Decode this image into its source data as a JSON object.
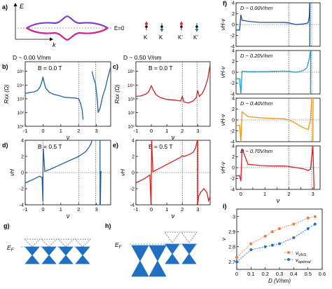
{
  "panel_labels": {
    "a": "a)",
    "b": "b)",
    "c": "c)",
    "d": "d)",
    "e": "e)",
    "f": "f)",
    "g": "g)",
    "h": "h)",
    "i": "i)"
  },
  "schematic_a": {
    "energy_label": "E",
    "k_label": "k",
    "fermi_label": "E=0",
    "valleys": [
      "K",
      "K",
      "K'",
      "K'"
    ],
    "colors": {
      "purple": "#7a3fd1",
      "magenta": "#d0208a",
      "red_arrow": "#d62728",
      "blue_arrow": "#1f77b4"
    }
  },
  "panel_b_header": "D ~ 0.00 V/nm",
  "panel_c_header": "D ~ 0.50 V/nm",
  "colors": {
    "blue": "#1f5fa8",
    "red": "#d62020",
    "dark_blue": "#1b4f91",
    "light_blue": "#1f9bd3",
    "orange": "#f0960f",
    "red_f": "#d62020",
    "cone_blue": "#1f6fc2",
    "orange_i": "#f07a3a",
    "blue_i": "#1f6fc2"
  },
  "chart_data": [
    {
      "panel": "b",
      "type": "line",
      "title": "B = 0.0 T",
      "xlabel": "ν",
      "ylabel": "Rxx (Ω)",
      "xlim": [
        -1,
        3.8
      ],
      "ylog": true,
      "ylim_exp": [
        1,
        5.7
      ],
      "xticks": [
        -1,
        0,
        1,
        2,
        3
      ],
      "ytick_labels": [
        "10¹",
        "10²",
        "10³",
        "10⁴",
        "10⁵"
      ],
      "dashed_x": [
        2.0,
        2.95
      ],
      "series": [
        {
          "x": [
            -1.0,
            -0.8,
            -0.5,
            -0.3,
            -0.15,
            -0.05,
            0.0,
            0.05,
            0.15,
            0.35,
            0.6,
            0.9,
            1.2,
            1.5,
            1.8,
            2.0,
            2.1,
            2.2,
            2.25
          ],
          "y": [
            2500,
            2800,
            3200,
            4200,
            8000,
            20000,
            40000,
            18000,
            6000,
            3000,
            2100,
            1700,
            1300,
            1200,
            1150,
            1000,
            500,
            150,
            30
          ]
        },
        {
          "x": [
            2.75,
            2.85,
            2.95,
            3.05,
            3.1,
            3.2,
            3.35,
            3.5,
            3.65,
            3.8
          ],
          "y": [
            100000,
            30000,
            12000,
            900,
            100,
            200,
            1500,
            6000,
            40000,
            200000
          ]
        }
      ]
    },
    {
      "panel": "c",
      "type": "line",
      "title": "B = 0.0 T",
      "xlabel": "ν",
      "ylabel": "Rxx (Ω)",
      "xlim": [
        -1,
        3.8
      ],
      "ylog": true,
      "ylim_exp": [
        1,
        5.7
      ],
      "xticks": [
        -1,
        0,
        1,
        2,
        3
      ],
      "ytick_labels": [
        "10¹",
        "10²",
        "10³",
        "10⁴",
        "10⁵"
      ],
      "dashed_x": [
        2.0,
        2.95
      ],
      "series": [
        {
          "x": [
            -1.0,
            -0.7,
            -0.4,
            -0.2,
            -0.1,
            0.0,
            0.1,
            0.3,
            0.6,
            1.0,
            1.5,
            1.9,
            2.0,
            2.1,
            2.4,
            2.7,
            2.9,
            3.0,
            3.1,
            3.3,
            3.5,
            3.65,
            3.75,
            3.8
          ],
          "y": [
            1500,
            1600,
            2100,
            3000,
            5000,
            9000,
            5000,
            2000,
            1200,
            900,
            800,
            700,
            1500,
            600,
            500,
            700,
            1200,
            4000,
            1500,
            2500,
            8000,
            30000,
            150000,
            300000
          ]
        }
      ]
    },
    {
      "panel": "d",
      "type": "line",
      "title": "B = 0.5 T",
      "xlabel": "ν",
      "ylabel": "νH",
      "xlim": [
        -1,
        3.8
      ],
      "ylim": [
        -4,
        4
      ],
      "xticks": [
        -1,
        0,
        1,
        2,
        3
      ],
      "yticks": [
        -4,
        -2,
        0,
        2,
        4
      ],
      "dashed_x": [
        2.0,
        2.95
      ],
      "series": [
        {
          "x": [
            -1.0,
            -0.8,
            -0.5,
            -0.2,
            -0.05,
            -0.01,
            0.0,
            0.01,
            0.1,
            0.4,
            0.8,
            1.2,
            1.6,
            2.0,
            2.2,
            2.4,
            2.6,
            2.7,
            2.75
          ],
          "y": [
            -1.3,
            -1.1,
            -0.8,
            -0.45,
            -0.6,
            -3.6,
            0.2,
            3.0,
            0.15,
            0.4,
            0.8,
            1.2,
            1.6,
            2.0,
            2.3,
            2.6,
            3.2,
            3.6,
            4.0
          ]
        },
        {
          "x": [
            3.2,
            3.2,
            3.22,
            3.25,
            3.3
          ],
          "y": [
            4.0,
            -4.0,
            -4.0,
            0.1,
            0.1
          ]
        }
      ]
    },
    {
      "panel": "e",
      "type": "line",
      "title": "B = 0.5 T",
      "xlabel": "ν",
      "ylabel": "νH",
      "xlim": [
        -1,
        3.8
      ],
      "ylim": [
        -4,
        4
      ],
      "xticks": [
        -1,
        0,
        1,
        2,
        3
      ],
      "yticks": [
        -4,
        -2,
        0,
        2,
        4
      ],
      "dashed_x": [
        2.0,
        2.95
      ],
      "series": [
        {
          "x": [
            -1.0,
            -0.7,
            -0.4,
            -0.1,
            -0.02,
            0.0,
            0.02,
            0.1,
            0.4,
            0.8,
            1.2,
            1.6,
            1.9,
            2.0,
            2.1,
            2.4,
            2.7,
            2.85,
            2.95,
            3.0
          ],
          "y": [
            -1.3,
            -1.0,
            -0.7,
            -0.3,
            -4.0,
            0.0,
            4.0,
            0.1,
            0.4,
            0.8,
            1.2,
            1.6,
            1.9,
            2.1,
            2.0,
            2.2,
            2.5,
            3.0,
            3.8,
            4.0
          ]
        },
        {
          "x": [
            3.0,
            3.0,
            3.05,
            3.2,
            3.4,
            3.6,
            3.7,
            3.8
          ],
          "y": [
            4.0,
            -4.0,
            -3.0,
            -2.4,
            -2.0,
            -2.5,
            -3.5,
            -3.0
          ]
        }
      ]
    },
    {
      "panel": "f1",
      "type": "line",
      "title": "D ~ 0.00V/nm",
      "xlabel": "",
      "ylabel": "νH-ν",
      "xlim": [
        -0.2,
        3.3
      ],
      "ylim": [
        -4,
        4
      ],
      "yticks": [
        -4,
        -2,
        0,
        2,
        4
      ],
      "dashed_x": [
        2.0,
        2.95
      ],
      "series": [
        {
          "x": [
            -0.2,
            -0.05,
            0.0,
            0.05,
            0.3,
            0.8,
            1.3,
            1.8,
            2.0,
            2.3,
            2.6,
            2.8,
            2.85,
            2.87
          ],
          "y": [
            -1.0,
            -1.0,
            1.8,
            0.8,
            0.6,
            0.4,
            0.4,
            0.4,
            0.3,
            0.0,
            0.1,
            0.3,
            1.5,
            4.0
          ]
        },
        {
          "x": [
            2.87,
            2.88
          ],
          "y": [
            -4.0,
            4.0
          ]
        }
      ]
    },
    {
      "panel": "f2",
      "type": "line",
      "title": "D ~ 0.20V/nm",
      "xlabel": "",
      "ylabel": "νH-ν",
      "xlim": [
        -0.2,
        3.3
      ],
      "ylim": [
        -4,
        4
      ],
      "yticks": [
        -4,
        -2,
        0,
        2,
        4
      ],
      "dashed_x": [
        2.0,
        2.95
      ],
      "series": [
        {
          "x": [
            -0.2,
            -0.05,
            0.0,
            0.05,
            0.3,
            0.8,
            1.3,
            1.8,
            2.0,
            2.3,
            2.6,
            2.75,
            2.85,
            2.9
          ],
          "y": [
            -1.2,
            -1.2,
            -4.0,
            0.2,
            0.1,
            0.1,
            0.15,
            0.2,
            0.15,
            0.0,
            0.3,
            0.8,
            2.5,
            4.0
          ]
        },
        {
          "x": [
            2.9,
            2.91
          ],
          "y": [
            -4.0,
            4.0
          ]
        }
      ]
    },
    {
      "panel": "f3",
      "type": "line",
      "title": "D ~ 0.40V/nm",
      "xlabel": "",
      "ylabel": "νH-ν",
      "xlim": [
        -0.2,
        3.3
      ],
      "ylim": [
        -4,
        4
      ],
      "yticks": [
        -4,
        -2,
        0,
        2,
        4
      ],
      "dashed_x": [
        2.0,
        2.95
      ],
      "series": [
        {
          "x": [
            -0.2,
            -0.05,
            0.0,
            0.05,
            0.3,
            0.8,
            1.3,
            1.8,
            2.0,
            2.2,
            2.5,
            2.8,
            2.9,
            2.95,
            3.0
          ],
          "y": [
            -1.0,
            -1.0,
            -4.0,
            1.5,
            0.6,
            0.4,
            0.3,
            0.2,
            0.0,
            -0.4,
            -1.2,
            -1.8,
            0.0,
            4.0,
            4.0
          ]
        },
        {
          "x": [
            3.0,
            3.01
          ],
          "y": [
            -4.0,
            4.0
          ]
        }
      ]
    },
    {
      "panel": "f4",
      "type": "line",
      "title": "D ~ 0.70V/nm",
      "xlabel": "ν",
      "ylabel": "νH-ν",
      "xlim": [
        -0.2,
        3.3
      ],
      "ylim": [
        -4,
        4
      ],
      "xticks": [
        0,
        0.5,
        1,
        1.5,
        2,
        2.5,
        3
      ],
      "yticks": [
        -4,
        -2,
        0,
        2,
        4
      ],
      "dashed_x": [
        2.0,
        2.95
      ],
      "series": [
        {
          "x": [
            -0.2,
            -0.05,
            0.0,
            0.05,
            0.3,
            0.8,
            1.3,
            1.8,
            2.0,
            2.3,
            2.6,
            2.8,
            2.9,
            3.0,
            3.05,
            3.1
          ],
          "y": [
            -1.5,
            -1.5,
            -2.5,
            3.5,
            0.6,
            0.4,
            0.3,
            0.3,
            0.2,
            0.0,
            -0.2,
            -0.5,
            -0.3,
            4.0,
            -4.0,
            -4.0
          ]
        }
      ]
    },
    {
      "panel": "i",
      "type": "line",
      "xlabel": "D (V/nm)",
      "ylabel": "ν",
      "xlim": [
        0,
        0.6
      ],
      "ylim": [
        2.65,
        3.05
      ],
      "xticks": [
        0,
        0.1,
        0.2,
        0.3,
        0.4,
        0.5,
        0.6
      ],
      "yticks": [
        2.7,
        2.8,
        2.9,
        3.0
      ],
      "legend_position": "bottom-right",
      "series": [
        {
          "name": "ν_VHS",
          "color": "#f07a3a",
          "x": [
            0.0,
            0.1,
            0.2,
            0.25,
            0.3,
            0.4,
            0.5,
            0.55
          ],
          "y": [
            2.73,
            2.82,
            2.87,
            2.9,
            2.92,
            2.95,
            2.99,
            3.0
          ]
        },
        {
          "name": "ν_optimal",
          "color": "#1f6fc2",
          "x": [
            0.0,
            0.1,
            0.2,
            0.25,
            0.3,
            0.4,
            0.5,
            0.55
          ],
          "y": [
            2.7,
            2.78,
            2.8,
            2.81,
            2.82,
            2.86,
            2.92,
            2.95
          ]
        }
      ]
    }
  ],
  "schematic_g": {
    "fermi_label": "E_F",
    "ef_main": "E",
    "ef_sub": "F"
  },
  "schematic_h": {
    "fermi_label": "E_F",
    "ef_main": "E",
    "ef_sub": "F"
  }
}
